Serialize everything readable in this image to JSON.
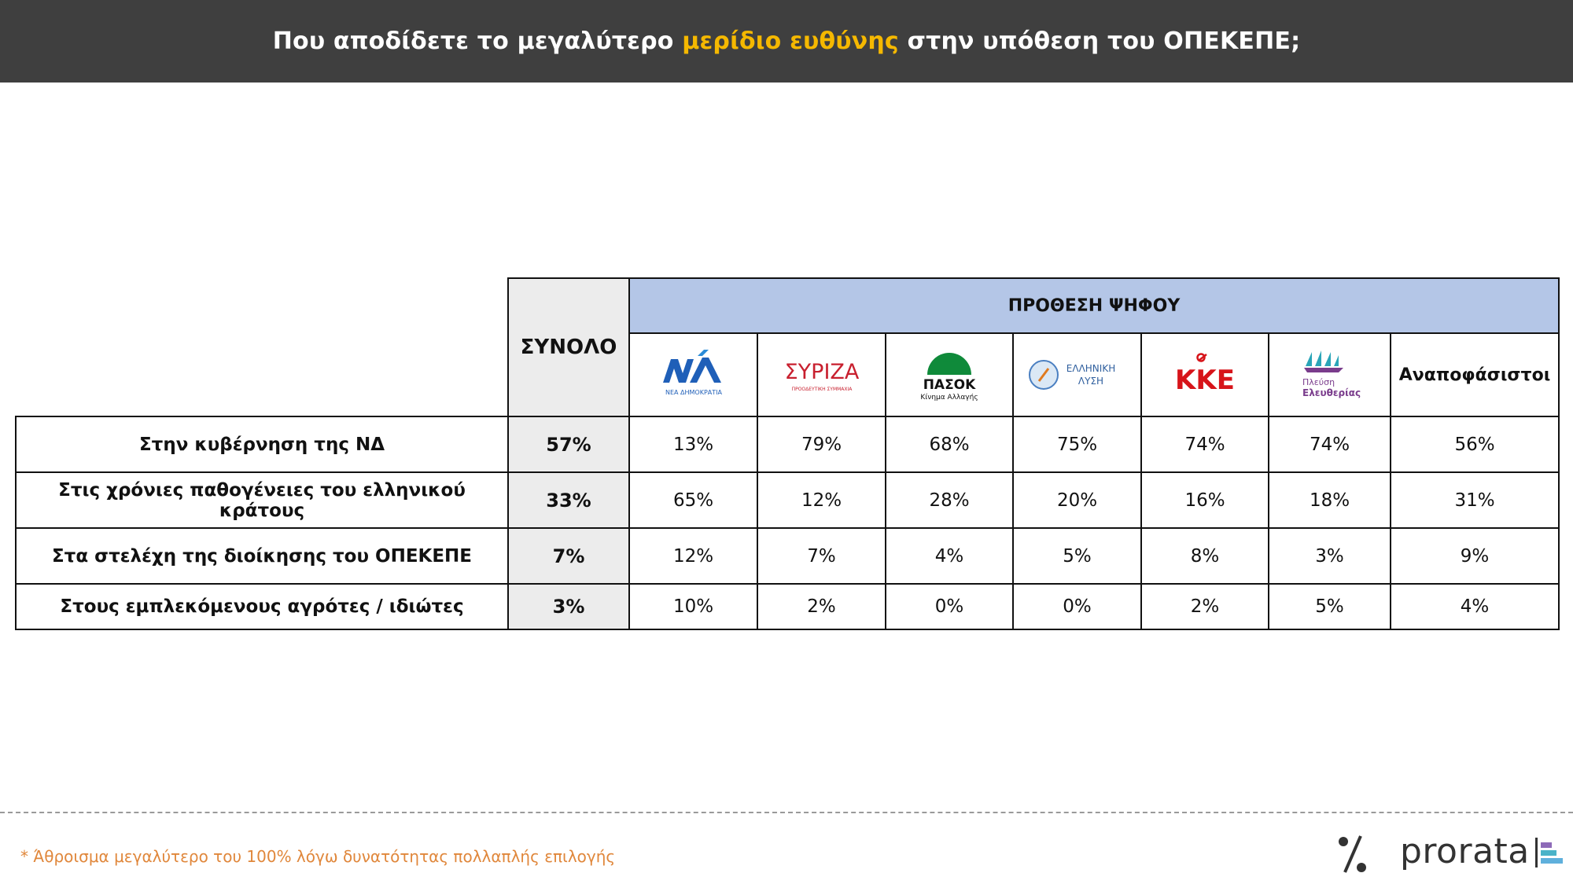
{
  "title": {
    "before": "Που αποδίδετε το μεγαλύτερο ",
    "highlight": "μερίδιο ευθύνης",
    "after": " στην υπόθεση του ΟΠΕΚΕΠΕ;"
  },
  "colors": {
    "header_bg": "#3f3f3f",
    "highlight": "#f5b800",
    "group_header_bg": "#b4c6e7",
    "total_bg": "#ececec",
    "footnote": "#e0873b"
  },
  "chart_data": {
    "type": "table",
    "total_header": "ΣΥΝΟΛΟ",
    "group_header": "ΠΡΟΘΕΣΗ ΨΗΦΟΥ",
    "parties": [
      {
        "key": "nd",
        "logo_text": [
          "ΝΔ",
          "ΝΕΑ ΔΗΜΟΚΡΑΤΙΑ"
        ]
      },
      {
        "key": "syriza",
        "logo_text": [
          "ΣΥΡΙΖΑ",
          "ΠΡΟΟΔΕΥΤΙΚΗ ΣΥΜΜΑΧΙΑ"
        ]
      },
      {
        "key": "pasok",
        "logo_text": [
          "ΠΑΣΟΚ",
          "Κίνημα Αλλαγής"
        ]
      },
      {
        "key": "elliniki_lysi",
        "logo_text": [
          "ΕΛΛΗΝΙΚΗ",
          "ΛΥΣΗ"
        ]
      },
      {
        "key": "kke",
        "logo_text": [
          "ΚΚΕ"
        ]
      },
      {
        "key": "plefsi",
        "logo_text": [
          "Πλεύση",
          "Ελευθερίας"
        ]
      },
      {
        "key": "undecided",
        "label": "Αναποφάσιστοι"
      }
    ],
    "rows": [
      {
        "label": "Στην κυβέρνηση της ΝΔ",
        "total": "57%",
        "values": [
          "13%",
          "79%",
          "68%",
          "75%",
          "74%",
          "74%",
          "56%"
        ]
      },
      {
        "label": "Στις χρόνιες παθογένειες του ελληνικού κράτους",
        "total": "33%",
        "values": [
          "65%",
          "12%",
          "28%",
          "20%",
          "16%",
          "18%",
          "31%"
        ]
      },
      {
        "label": "Στα στελέχη της διοίκησης του ΟΠΕΚΕΠΕ",
        "total": "7%",
        "values": [
          "12%",
          "7%",
          "4%",
          "5%",
          "8%",
          "3%",
          "9%"
        ]
      },
      {
        "label": "Στους εμπλεκόμενους αγρότες / ιδιώτες",
        "total": "3%",
        "values": [
          "10%",
          "2%",
          "0%",
          "0%",
          "2%",
          "5%",
          "4%"
        ]
      }
    ]
  },
  "footnote": "* Άθροισμα μεγαλύτερο του 100% λόγω δυνατότητας πολλαπλής επιλογής",
  "brand": {
    "symbol": "%",
    "name": "prorata"
  }
}
